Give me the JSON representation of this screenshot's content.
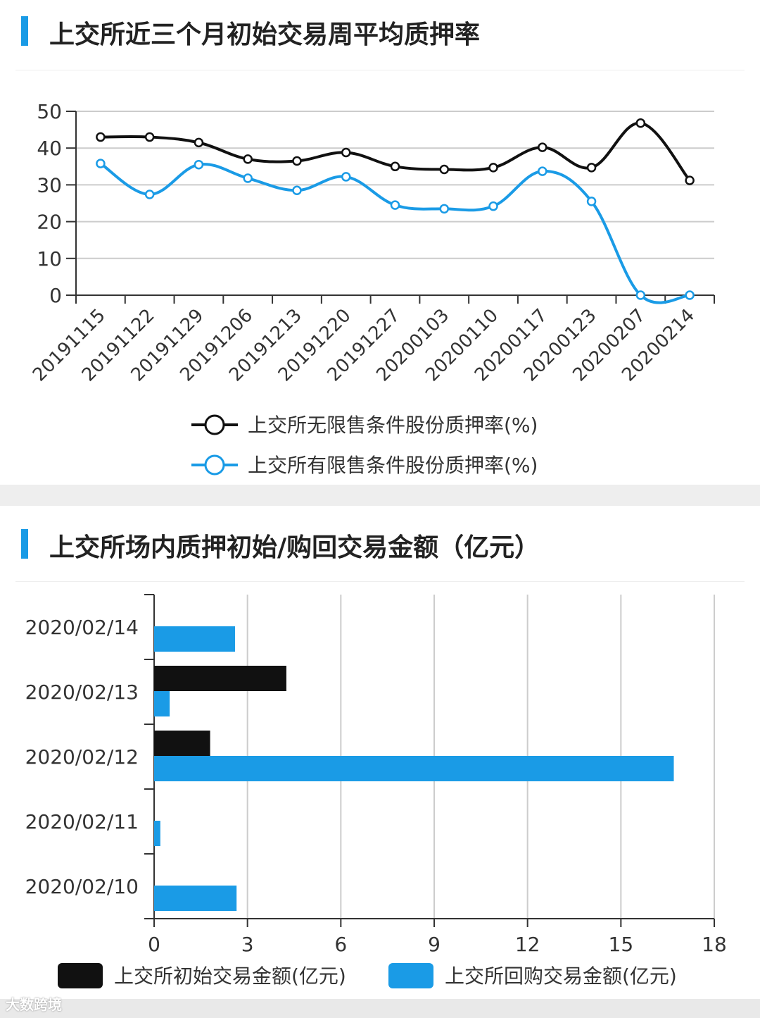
{
  "colors": {
    "accent": "#1a9be6",
    "black_series": "#111111",
    "blue_series": "#1a9be6",
    "grid": "#cccccc"
  },
  "chart1_title": "上交所近三个月初始交易周平均质押率",
  "chart2_title": "上交所场内质押初始/购回交易金额（亿元）",
  "watermark": "大数跨境",
  "chart_data": [
    {
      "type": "line",
      "title": "上交所近三个月初始交易周平均质押率",
      "categories": [
        "20191115",
        "20191122",
        "20191129",
        "20191206",
        "20191213",
        "20191220",
        "20191227",
        "20200103",
        "20200110",
        "20200117",
        "20200123",
        "20200207",
        "20200214"
      ],
      "ylim": [
        0,
        50
      ],
      "yticks": [
        0,
        10,
        20,
        30,
        40,
        50
      ],
      "grid": true,
      "legend": "bottom",
      "series": [
        {
          "name": "上交所无限售条件股份质押率(%)",
          "color": "#111111",
          "values": [
            43,
            43,
            41.5,
            37,
            36.5,
            38.8,
            35,
            34.2,
            34.7,
            40.2,
            34.7,
            46.8,
            31.2
          ]
        },
        {
          "name": "上交所有限售条件股份质押率(%)",
          "color": "#1a9be6",
          "values": [
            35.8,
            27.4,
            35.5,
            31.8,
            28.5,
            32.2,
            24.5,
            23.5,
            24.2,
            33.7,
            25.5,
            0,
            0
          ]
        }
      ]
    },
    {
      "type": "bar",
      "orientation": "horizontal",
      "title": "上交所场内质押初始/购回交易金额（亿元）",
      "categories": [
        "2020/02/14",
        "2020/02/13",
        "2020/02/12",
        "2020/02/11",
        "2020/02/10"
      ],
      "xlim": [
        0,
        18
      ],
      "xticks": [
        0,
        3,
        6,
        9,
        12,
        15,
        18
      ],
      "grid": true,
      "legend": "bottom",
      "series": [
        {
          "name": "上交所初始交易金额(亿元)",
          "color": "#111111",
          "values": [
            0,
            4.25,
            1.8,
            0,
            0
          ]
        },
        {
          "name": "上交所回购交易金额(亿元)",
          "color": "#1a9be6",
          "values": [
            2.6,
            0.5,
            16.7,
            0.2,
            2.65
          ]
        }
      ]
    }
  ]
}
